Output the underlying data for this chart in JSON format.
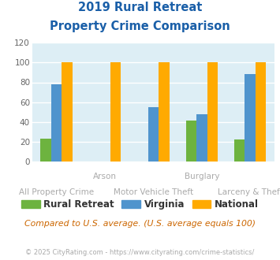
{
  "title_line1": "2019 Rural Retreat",
  "title_line2": "Property Crime Comparison",
  "x_labels_top": [
    "",
    "Arson",
    "",
    "Burglary",
    ""
  ],
  "x_labels_bottom": [
    "All Property Crime",
    "",
    "Motor Vehicle Theft",
    "",
    "Larceny & Theft"
  ],
  "rural_retreat": [
    23,
    0,
    0,
    41,
    22
  ],
  "virginia": [
    78,
    0,
    55,
    48,
    88
  ],
  "national": [
    100,
    100,
    100,
    100,
    100
  ],
  "bar_color_rural": "#6db33f",
  "bar_color_virginia": "#4f94cd",
  "bar_color_national": "#ffaa00",
  "bg_color": "#ddeef5",
  "ylim": [
    0,
    120
  ],
  "yticks": [
    0,
    20,
    40,
    60,
    80,
    100,
    120
  ],
  "title_color": "#1a5fa8",
  "xlabel_color": "#aaaaaa",
  "note_text": "Compared to U.S. average. (U.S. average equals 100)",
  "note_color": "#cc6600",
  "footer_text": "© 2025 CityRating.com - https://www.cityrating.com/crime-statistics/",
  "footer_color": "#aaaaaa",
  "legend_labels": [
    "Rural Retreat",
    "Virginia",
    "National"
  ],
  "legend_color": "#333333"
}
